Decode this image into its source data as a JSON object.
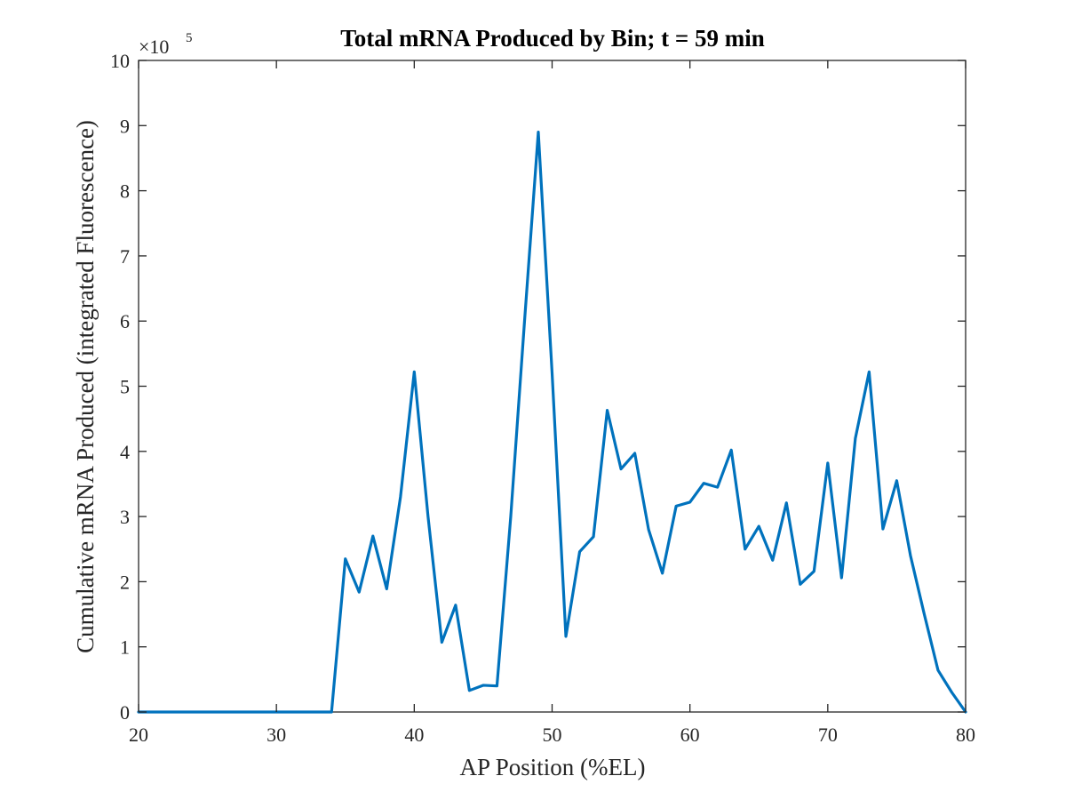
{
  "chart_data": {
    "type": "line",
    "title": "Total mRNA Produced by Bin; t = 59 min",
    "xlabel": "AP Position (%EL)",
    "ylabel": "Cumulative mRNA Produced (integrated Fluorescence)",
    "y_multiplier_label": "×10",
    "y_multiplier_exponent": "5",
    "xlim": [
      20,
      80
    ],
    "ylim": [
      0,
      10
    ],
    "x_ticks": [
      20,
      30,
      40,
      50,
      60,
      70,
      80
    ],
    "y_ticks": [
      0,
      1,
      2,
      3,
      4,
      5,
      6,
      7,
      8,
      9,
      10
    ],
    "line_color": "#0072BD",
    "box": true,
    "grid": false,
    "series": [
      {
        "x": [
          20,
          21,
          22,
          23,
          24,
          25,
          26,
          27,
          28,
          29,
          30,
          31,
          32,
          33,
          34,
          35,
          36,
          37,
          38,
          39,
          40,
          41,
          42,
          43,
          44,
          45,
          46,
          47,
          48,
          49,
          50,
          51,
          52,
          53,
          54,
          55,
          56,
          57,
          58,
          59,
          60,
          61,
          62,
          63,
          64,
          65,
          66,
          67,
          68,
          69,
          70,
          71,
          72,
          73,
          74,
          75,
          76,
          77,
          78,
          79,
          80
        ],
        "y": [
          0,
          0,
          0,
          0,
          0,
          0,
          0,
          0,
          0,
          0,
          0,
          0,
          0,
          0,
          0,
          2.35,
          1.84,
          2.7,
          1.89,
          3.3,
          5.22,
          3.0,
          1.07,
          1.64,
          0.33,
          0.41,
          0.4,
          3.0,
          6.0,
          8.9,
          5.2,
          1.16,
          2.46,
          2.69,
          4.63,
          3.73,
          3.97,
          2.8,
          2.13,
          3.16,
          3.22,
          3.51,
          3.45,
          4.02,
          2.5,
          2.85,
          2.33,
          3.21,
          1.96,
          2.16,
          3.82,
          2.06,
          4.2,
          5.22,
          2.81,
          3.55,
          2.4,
          1.5,
          0.64,
          0.3,
          0.0
        ]
      }
    ]
  }
}
